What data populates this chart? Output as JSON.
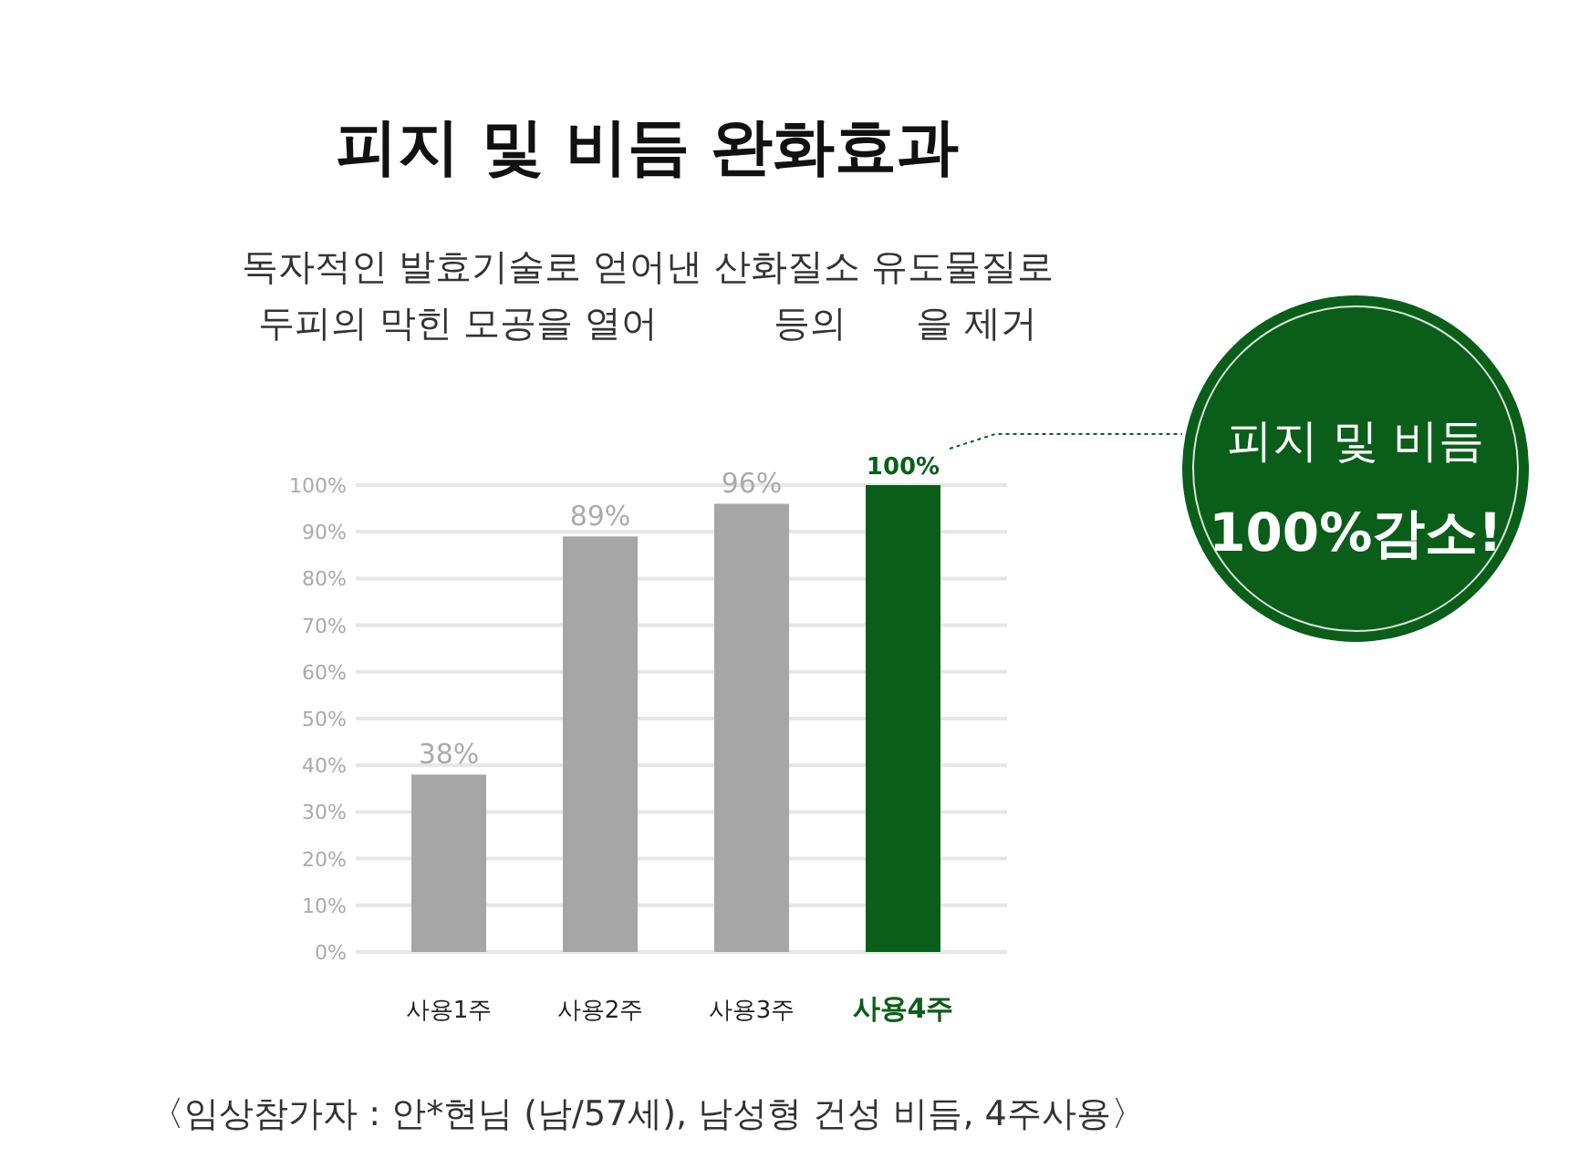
{
  "chart_data": {
    "type": "bar",
    "title": "피지 및 비듬 완화효과",
    "subtitle": "독자적인 발효기술로 얻어낸 산화질소 유도물질로\n두피의 막힌 모공을 열어          등의      을 제거",
    "categories": [
      "사용1주",
      "사용2주",
      "사용3주",
      "사용4주"
    ],
    "values": [
      38,
      89,
      96,
      100
    ],
    "colors": [
      "#a6a6a6",
      "#a6a6a6",
      "#a6a6a6",
      "#0b5e1a"
    ],
    "ylim": [
      0,
      100
    ],
    "yticks": [
      {
        "value": 0,
        "label": "0%"
      },
      {
        "value": 10,
        "label": "10%"
      },
      {
        "value": 20,
        "label": "20%"
      },
      {
        "value": 30,
        "label": "30%"
      },
      {
        "value": 40,
        "label": "40%"
      },
      {
        "value": 50,
        "label": "50%"
      },
      {
        "value": 60,
        "label": "60%"
      },
      {
        "value": 70,
        "label": "70%"
      },
      {
        "value": 80,
        "label": "80%"
      },
      {
        "value": 90,
        "label": "90%"
      },
      {
        "value": 100,
        "label": "100%"
      }
    ],
    "grid": "y",
    "value_labels": [
      "38%",
      "89%",
      "96%",
      "100%"
    ],
    "annotations": [
      "피지 및 비듬",
      "100%감소!",
      "〈임상참가자 : 안*현님 (남/57세), 남성형 건성 비듬, 4주사용〉"
    ]
  }
}
